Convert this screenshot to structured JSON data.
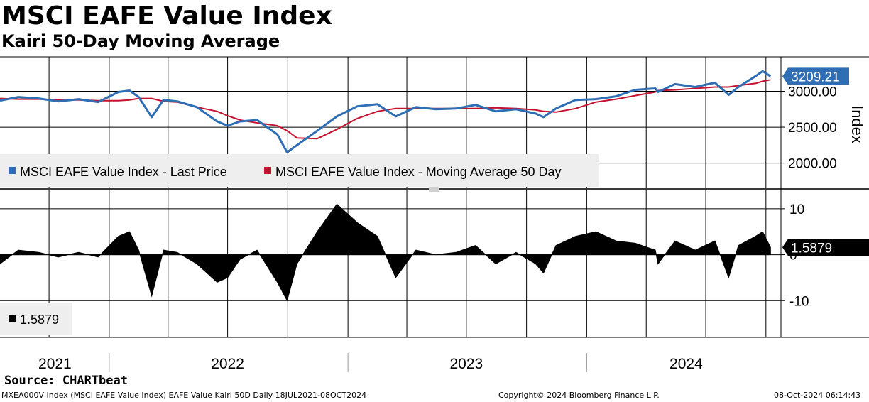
{
  "title": "MSCI EAFE Value Index",
  "subtitle": "Kairi 50-Day Moving Average",
  "source": "Source: CHARTbeat",
  "footer": {
    "left": "MXEA000V Index (MSCI EAFE Value Index) EAFE Value Kairi 50D  Daily 18JUL2021-08OCT2024",
    "center": "Copyright© 2024 Bloomberg Finance L.P.",
    "right": "08-Oct-2024 06:14:43"
  },
  "colors": {
    "price": "#2f6db5",
    "ma": "#c4122f",
    "kairi": "#000000",
    "badge_blue": "#2f6db5",
    "badge_black": "#000000"
  },
  "chart_data": [
    {
      "type": "line",
      "panel": "upper",
      "ylabel": "Index",
      "ylim": [
        1650,
        3480
      ],
      "yticks": [
        "3000.00",
        "2500.00",
        "2000.00"
      ],
      "ytick_values": [
        3000,
        2500,
        2000
      ],
      "last_value_label": "3209.21",
      "last_value": 3209.21,
      "legend": [
        "MSCI EAFE Value Index - Last Price",
        "MSCI EAFE Value Index - Moving Average 50 Day"
      ],
      "x_dates": [
        "2021-07-18",
        "2021-08-15",
        "2021-09-15",
        "2021-10-15",
        "2021-11-15",
        "2021-12-15",
        "2022-01-15",
        "2022-02-01",
        "2022-02-15",
        "2022-03-07",
        "2022-03-25",
        "2022-04-15",
        "2022-05-15",
        "2022-06-15",
        "2022-07-01",
        "2022-07-20",
        "2022-08-15",
        "2022-09-15",
        "2022-09-30",
        "2022-10-15",
        "2022-11-15",
        "2022-12-15",
        "2023-01-15",
        "2023-02-15",
        "2023-03-15",
        "2023-04-15",
        "2023-05-15",
        "2023-06-15",
        "2023-07-15",
        "2023-08-15",
        "2023-09-15",
        "2023-10-15",
        "2023-10-27",
        "2023-11-15",
        "2023-12-15",
        "2024-01-15",
        "2024-02-15",
        "2024-03-15",
        "2024-04-15",
        "2024-04-19",
        "2024-05-15",
        "2024-06-15",
        "2024-07-15",
        "2024-08-05",
        "2024-08-20",
        "2024-09-15",
        "2024-09-26",
        "2024-10-08"
      ],
      "series": [
        {
          "name": "MSCI EAFE Value Index - Last Price",
          "values": [
            2870,
            2920,
            2900,
            2860,
            2890,
            2850,
            2990,
            3010,
            2920,
            2640,
            2880,
            2860,
            2780,
            2580,
            2520,
            2580,
            2600,
            2400,
            2150,
            2250,
            2450,
            2650,
            2790,
            2820,
            2650,
            2780,
            2750,
            2760,
            2810,
            2720,
            2750,
            2690,
            2640,
            2760,
            2880,
            2890,
            2930,
            3020,
            3040,
            2990,
            3100,
            3060,
            3120,
            2950,
            3060,
            3210,
            3280,
            3209
          ]
        },
        {
          "name": "MSCI EAFE Value Index - Moving Average 50 Day",
          "values": [
            2900,
            2890,
            2890,
            2880,
            2880,
            2870,
            2870,
            2880,
            2900,
            2900,
            2860,
            2850,
            2780,
            2720,
            2660,
            2600,
            2560,
            2520,
            2450,
            2350,
            2340,
            2470,
            2620,
            2720,
            2760,
            2760,
            2760,
            2760,
            2760,
            2770,
            2760,
            2740,
            2720,
            2710,
            2760,
            2850,
            2890,
            2940,
            2990,
            3010,
            3020,
            3040,
            3060,
            3060,
            3080,
            3110,
            3140,
            3160
          ]
        }
      ]
    },
    {
      "type": "area",
      "panel": "lower",
      "ylim": [
        -18,
        14
      ],
      "yticks": [
        "10",
        "0",
        "-10"
      ],
      "ytick_values": [
        10,
        0,
        -10
      ],
      "last_value_label": "1.5879",
      "last_value": 1.5879,
      "legend": [
        "1.5879"
      ],
      "x_dates": [
        "2021-07-18",
        "2021-08-15",
        "2021-09-15",
        "2021-10-15",
        "2021-11-15",
        "2021-12-15",
        "2022-01-15",
        "2022-02-01",
        "2022-02-15",
        "2022-03-07",
        "2022-03-25",
        "2022-04-15",
        "2022-05-15",
        "2022-06-15",
        "2022-07-01",
        "2022-07-20",
        "2022-08-15",
        "2022-09-15",
        "2022-09-30",
        "2022-10-15",
        "2022-11-15",
        "2022-12-15",
        "2023-01-15",
        "2023-02-15",
        "2023-03-15",
        "2023-04-15",
        "2023-05-15",
        "2023-06-15",
        "2023-07-15",
        "2023-08-15",
        "2023-09-15",
        "2023-10-15",
        "2023-10-27",
        "2023-11-15",
        "2023-12-15",
        "2024-01-15",
        "2024-02-15",
        "2024-03-15",
        "2024-04-15",
        "2024-04-19",
        "2024-05-15",
        "2024-06-15",
        "2024-07-15",
        "2024-08-05",
        "2024-08-20",
        "2024-09-15",
        "2024-09-26",
        "2024-10-08"
      ],
      "series": [
        {
          "name": "",
          "values": [
            -2,
            1,
            0.5,
            -0.5,
            0.5,
            -0.5,
            4,
            5,
            1,
            -9,
            1,
            0.5,
            -2,
            -6,
            -5,
            -1,
            1,
            -6,
            -10,
            -2,
            5,
            11,
            7,
            4,
            -5,
            1,
            0,
            0.5,
            2,
            -2,
            0.5,
            -2,
            -4,
            2,
            4,
            5,
            3,
            2.5,
            1,
            -2,
            3,
            1,
            3,
            -5,
            2,
            4,
            5,
            1.59
          ]
        }
      ]
    }
  ],
  "xaxis": {
    "years": [
      "2021",
      "2022",
      "2023",
      "2024"
    ]
  }
}
